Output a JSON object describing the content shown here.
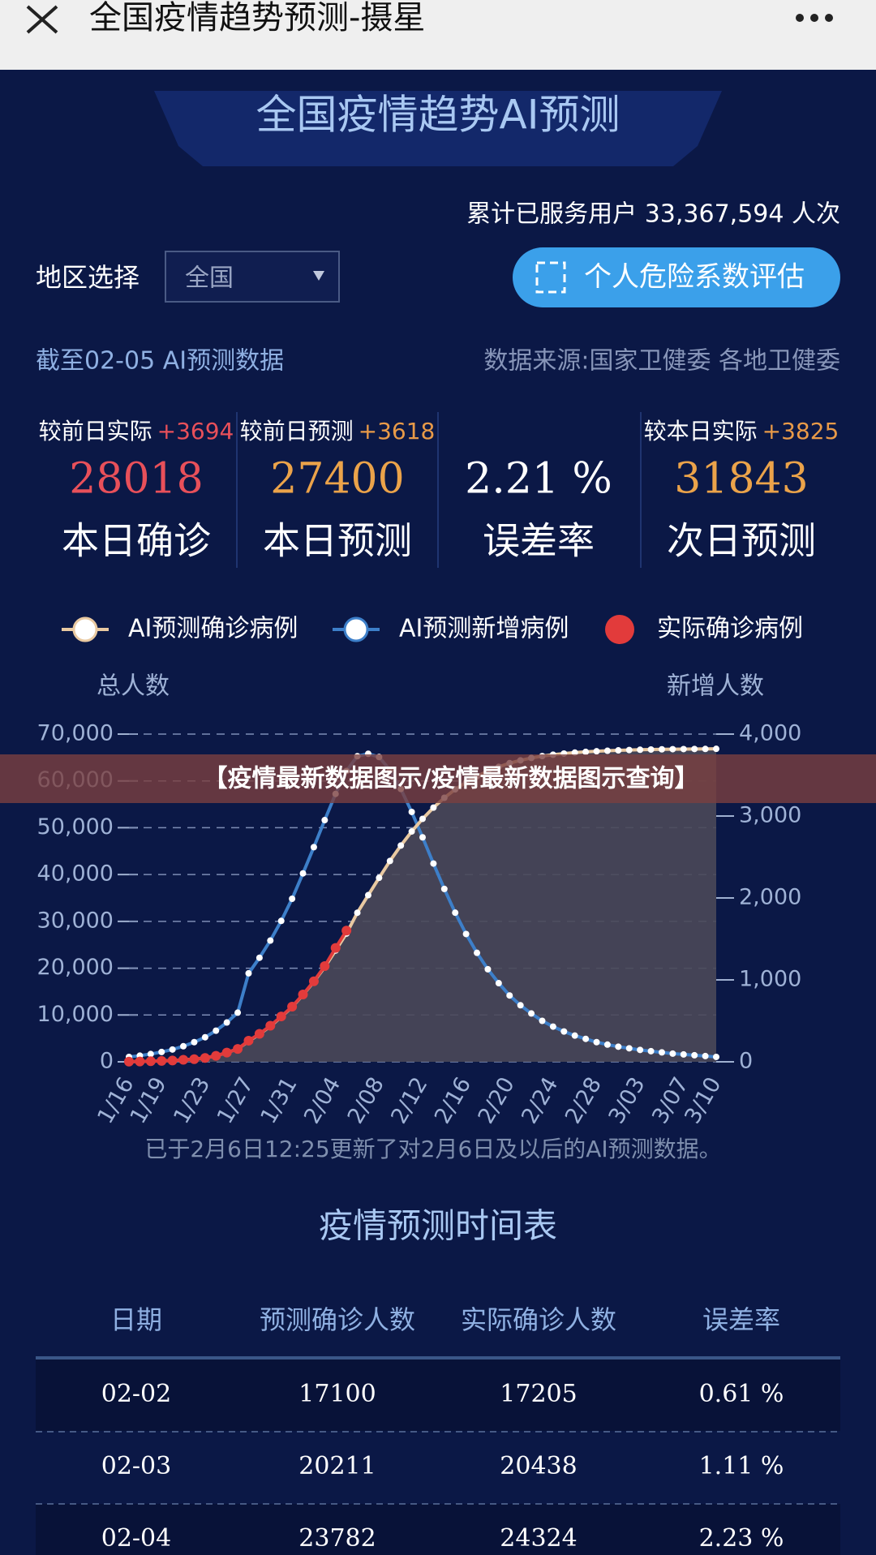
{
  "topbar": {
    "title": "全国疫情趋势预测-摄星"
  },
  "header": {
    "title": "全国疫情趋势AI预测",
    "users": "累计已服务用户 33,367,594 人次"
  },
  "region": {
    "label": "地区选择",
    "value": "全国"
  },
  "button": "个人危险系数评估",
  "as_of": "截至02-05 AI预测数据",
  "source": "数据来源:国家卫健委 各地卫健委",
  "stats": [
    {
      "label": "较前日实际",
      "delta": "+3694",
      "value": "28018",
      "caption": "本日确诊"
    },
    {
      "label": "较前日预测",
      "delta": "+3618",
      "value": "27400",
      "caption": "本日预测"
    },
    {
      "value": "2.21 %",
      "caption": "误差率"
    },
    {
      "label": "较本日实际",
      "delta": "+3825",
      "value": "31843",
      "caption": "次日预测"
    }
  ],
  "banner": "【疫情最新数据图示/疫情最新数据图示查询】",
  "chart_data": {
    "type": "line",
    "y_label": "总人数",
    "y2_label": "新增人数",
    "legend": "top",
    "grid": true,
    "categories": [
      "1/16",
      null,
      null,
      "1/19",
      null,
      null,
      null,
      "1/23",
      null,
      null,
      null,
      "1/27",
      null,
      null,
      null,
      "1/31",
      null,
      null,
      null,
      "2/04",
      null,
      null,
      null,
      "2/08",
      null,
      null,
      null,
      "2/12",
      null,
      null,
      null,
      "2/16",
      null,
      null,
      null,
      "2/20",
      null,
      null,
      null,
      "2/24",
      null,
      null,
      null,
      "2/28",
      null,
      null,
      null,
      "3/03",
      null,
      null,
      null,
      "3/07",
      null,
      null,
      "3/10"
    ],
    "ylim": [
      0,
      70000
    ],
    "yticks": [
      0,
      {
        "value": 10000,
        "label": "10,000"
      },
      {
        "value": 20000,
        "label": "20,000"
      },
      {
        "value": 30000,
        "label": "30,000"
      },
      {
        "value": 40000,
        "label": "40,000"
      },
      {
        "value": 50000,
        "label": "50,000"
      },
      {
        "value": 60000,
        "label": "60,000"
      },
      {
        "value": 70000,
        "label": "70,000"
      }
    ],
    "y2lim": [
      0,
      4000
    ],
    "y2ticks": [
      0,
      {
        "value": 1000,
        "label": "1,000"
      },
      {
        "value": 2000,
        "label": "2,000"
      },
      {
        "value": 3000,
        "label": "3,000"
      },
      {
        "value": 4000,
        "label": "4,000"
      }
    ],
    "series": [
      {
        "name": "AI预测确诊病例",
        "color": "#e9c9a1",
        "marker_color": "#ffffff",
        "fill": "#4a4858",
        "values": [
          45,
          60,
          120,
          200,
          290,
          440,
          580,
          830,
          1280,
          1960,
          2750,
          4400,
          5900,
          7600,
          9600,
          11700,
          14300,
          17100,
          20211,
          23782,
          27400,
          31843,
          35600,
          39300,
          42900,
          46200,
          49200,
          51900,
          54300,
          56400,
          58200,
          59700,
          61000,
          62100,
          63000,
          63800,
          64400,
          64900,
          65300,
          65600,
          65850,
          66050,
          66200,
          66330,
          66440,
          66530,
          66600,
          66660,
          66710,
          66750,
          66780,
          66800,
          66820,
          66835,
          66850
        ]
      },
      {
        "name": "AI预测新增病例",
        "color": "#3d7fc9",
        "marker_color": "#ffffff",
        "axis": "y2",
        "values": [
          60,
          75,
          95,
          120,
          150,
          190,
          240,
          300,
          380,
          480,
          600,
          1080,
          1270,
          1480,
          1720,
          1990,
          2300,
          2620,
          2950,
          3270,
          3550,
          3730,
          3760,
          3720,
          3560,
          3330,
          3050,
          2740,
          2420,
          2110,
          1820,
          1560,
          1330,
          1130,
          960,
          810,
          690,
          590,
          500,
          430,
          370,
          320,
          280,
          240,
          210,
          185,
          165,
          145,
          130,
          115,
          100,
          90,
          80,
          70,
          60
        ]
      },
      {
        "name": "实际确诊病例",
        "color": "#e23b3b",
        "marker_color": "#e23b3b",
        "values": [
          45,
          62,
          121,
          198,
          291,
          440,
          571,
          830,
          1287,
          1975,
          2744,
          4515,
          5974,
          7711,
          9692,
          11791,
          14380,
          17205,
          20438,
          24324,
          28018,
          null,
          null,
          null,
          null,
          null,
          null,
          null,
          null,
          null,
          null,
          null,
          null,
          null,
          null,
          null,
          null,
          null,
          null,
          null,
          null,
          null,
          null,
          null,
          null,
          null,
          null,
          null,
          null,
          null,
          null,
          null,
          null,
          null,
          null
        ]
      }
    ]
  },
  "note": "已于2月6日12:25更新了对2月6日及以后的AI预测数据。",
  "table": {
    "title": "疫情预测时间表",
    "columns": [
      "日期",
      "预测确诊人数",
      "实际确诊人数",
      "误差率"
    ],
    "rows": [
      [
        "02-02",
        "17100",
        "17205",
        "0.61 %"
      ],
      [
        "02-03",
        "20211",
        "20438",
        "1.11 %"
      ],
      [
        "02-04",
        "23782",
        "24324",
        "2.23 %"
      ]
    ]
  }
}
